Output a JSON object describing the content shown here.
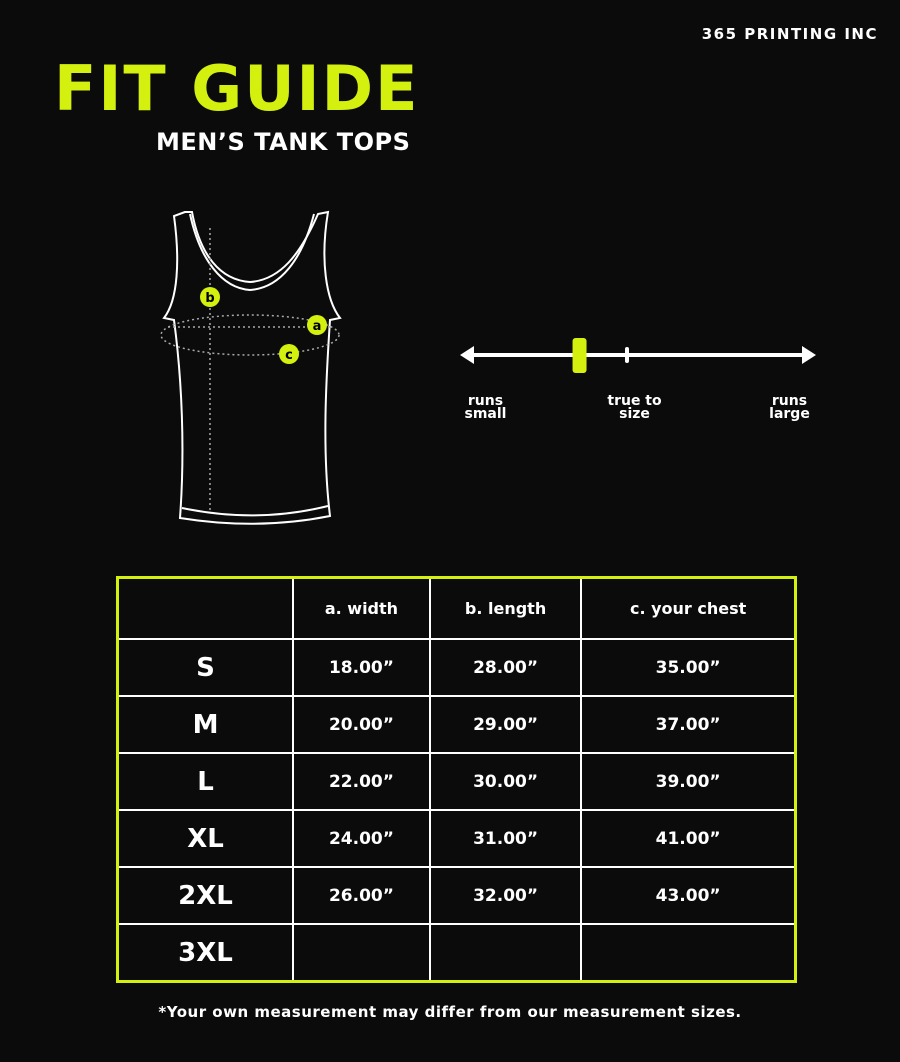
{
  "brand": "365 PRINTING INC",
  "title": "FIT GUIDE",
  "subtitle": "MEN’S TANK TOPS",
  "colors": {
    "accent": "#d4f00f",
    "background": "#0b0b0b",
    "text": "#ffffff"
  },
  "diagram": {
    "markers": [
      "a",
      "b",
      "c"
    ]
  },
  "fit_scale": {
    "left_label": "runs small",
    "center_label": "true to size",
    "right_label": "runs large",
    "fit_position": 0.33
  },
  "table": {
    "headers": [
      "",
      "a. width",
      "b. length",
      "c. your chest"
    ],
    "rows": [
      {
        "size": "S",
        "width": "18.00”",
        "length": "28.00”",
        "chest": "35.00”"
      },
      {
        "size": "M",
        "width": "20.00”",
        "length": "29.00”",
        "chest": "37.00”"
      },
      {
        "size": "L",
        "width": "22.00”",
        "length": "30.00”",
        "chest": "39.00”"
      },
      {
        "size": "XL",
        "width": "24.00”",
        "length": "31.00”",
        "chest": "41.00”"
      },
      {
        "size": "2XL",
        "width": "26.00”",
        "length": "32.00”",
        "chest": "43.00”"
      },
      {
        "size": "3XL",
        "width": "",
        "length": "",
        "chest": ""
      }
    ]
  },
  "footnote": "*Your own measurement may differ from our measurement sizes."
}
